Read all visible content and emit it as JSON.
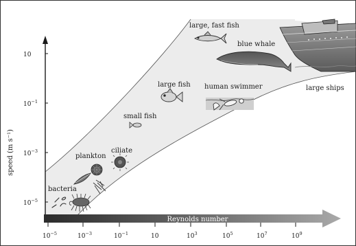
{
  "y_axis": {
    "label": "speed (m s⁻¹)",
    "ticks": [
      {
        "base": "10",
        "exp": ""
      },
      {
        "base": "10",
        "exp": "−1"
      },
      {
        "base": "10",
        "exp": "−3"
      },
      {
        "base": "10",
        "exp": "−5"
      }
    ]
  },
  "x_axis": {
    "label": "Reynolds number",
    "ticks": [
      {
        "base": "10",
        "exp": "−5"
      },
      {
        "base": "10",
        "exp": "−3"
      },
      {
        "base": "10",
        "exp": "−1"
      },
      {
        "base": "10",
        "exp": ""
      },
      {
        "base": "10",
        "exp": "3"
      },
      {
        "base": "10",
        "exp": "5"
      },
      {
        "base": "10",
        "exp": "7"
      },
      {
        "base": "10",
        "exp": "9"
      }
    ]
  },
  "organisms": {
    "bacteria": "bacteria",
    "plankton": "plankton",
    "ciliate": "ciliate",
    "small_fish": "small fish",
    "large_fish": "large fish",
    "human_swimmer": "human swimmer",
    "large_fast_fish": "large, fast fish",
    "blue_whale": "blue whale",
    "large_ships": "large ships"
  },
  "colors": {
    "band": "#ececec",
    "arrow_dark": "#333333",
    "arrow_light": "#9a9a9a",
    "ink": "#1a1a1a"
  }
}
